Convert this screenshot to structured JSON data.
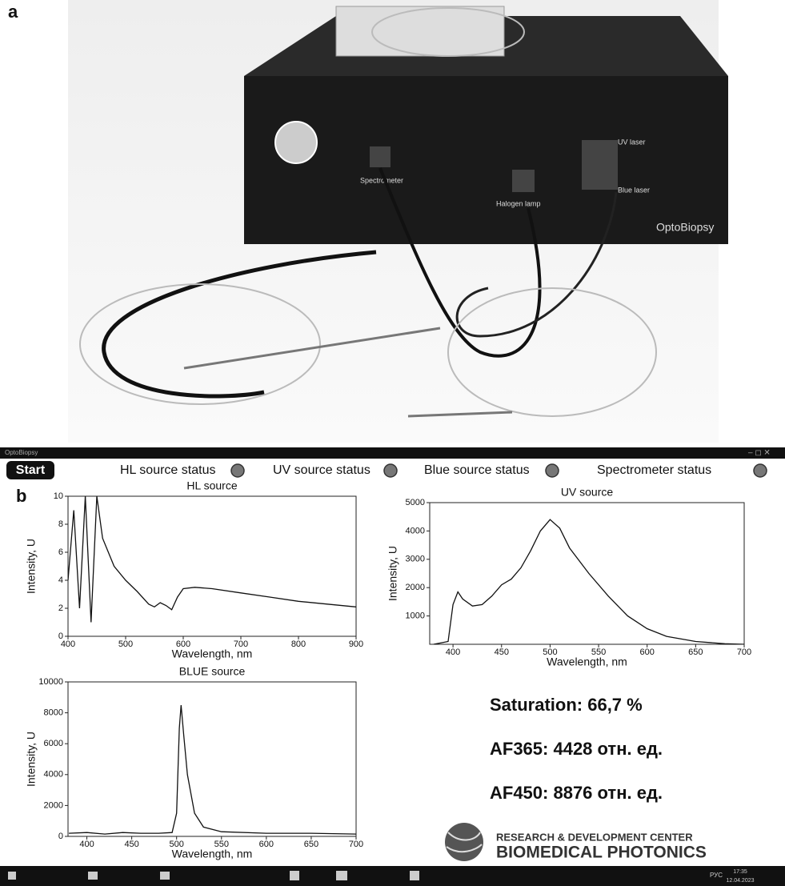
{
  "panel_labels": [
    "a",
    "b"
  ],
  "photo": {
    "labels": [
      "Spectrometer",
      "Halogen lamp",
      "UV laser",
      "Blue laser",
      "OptoBiopsy"
    ]
  },
  "window": {
    "title": "OptoBiopsy",
    "start_button": "Start",
    "statuses": [
      "HL source status",
      "UV source status",
      "Blue source status",
      "Spectrometer status"
    ]
  },
  "chart_data": [
    {
      "type": "line",
      "title": "HL source",
      "x_label": "Wavelength, nm",
      "y_label": "Intensity, U",
      "x": [
        400,
        410,
        420,
        430,
        440,
        450,
        460,
        470,
        480,
        500,
        520,
        540,
        550,
        560,
        570,
        580,
        590,
        600,
        620,
        650,
        700,
        750,
        800,
        850,
        900
      ],
      "series": [
        {
          "color": "#111111",
          "values": [
            4,
            9,
            2,
            10,
            1,
            10,
            7,
            6,
            5,
            4,
            3.2,
            2.3,
            2.1,
            2.4,
            2.2,
            1.9,
            2.8,
            3.4,
            3.5,
            3.4,
            3.1,
            2.8,
            2.5,
            2.3,
            2.1
          ]
        }
      ],
      "xlim": [
        400,
        900
      ],
      "ylim": [
        0,
        10
      ],
      "xticks": [
        400,
        500,
        600,
        700,
        800,
        900
      ],
      "yticks": [
        0,
        2,
        4,
        6,
        8,
        10
      ]
    },
    {
      "type": "line",
      "title": "UV source",
      "x_label": "Wavelength, nm",
      "y_label": "Intensity, U",
      "x": [
        380,
        395,
        400,
        405,
        410,
        420,
        430,
        440,
        450,
        460,
        470,
        480,
        490,
        500,
        510,
        520,
        540,
        560,
        580,
        600,
        620,
        650,
        680,
        700
      ],
      "series": [
        {
          "color": "#111111",
          "values": [
            0,
            100,
            1400,
            1850,
            1600,
            1350,
            1400,
            1700,
            2100,
            2300,
            2700,
            3300,
            4000,
            4400,
            4100,
            3400,
            2500,
            1700,
            1000,
            550,
            280,
            100,
            20,
            0
          ]
        }
      ],
      "xlim": [
        376,
        700
      ],
      "ylim": [
        0,
        5000
      ],
      "xticks": [
        400,
        450,
        500,
        550,
        600,
        650,
        700
      ],
      "yticks": [
        1000,
        2000,
        3000,
        4000,
        5000
      ]
    },
    {
      "type": "line",
      "title": "BLUE source",
      "x_label": "Wavelength, nm",
      "y_label": "Intensity, U",
      "x": [
        380,
        400,
        420,
        440,
        460,
        480,
        495,
        500,
        503,
        505,
        508,
        512,
        520,
        530,
        550,
        600,
        650,
        700
      ],
      "series": [
        {
          "color": "#111111",
          "values": [
            200,
            250,
            150,
            250,
            200,
            200,
            250,
            1500,
            7000,
            8500,
            6500,
            4000,
            1500,
            600,
            300,
            200,
            200,
            150
          ]
        }
      ],
      "xlim": [
        379,
        700
      ],
      "ylim": [
        0,
        10000
      ],
      "xticks": [
        400,
        450,
        500,
        550,
        600,
        650,
        700
      ],
      "yticks": [
        0,
        2000,
        4000,
        6000,
        8000,
        10000
      ]
    }
  ],
  "readouts": [
    "Saturation: 66,7 %",
    "AF365: 4428 отн. ед.",
    "AF450: 8876 отн. ед."
  ],
  "logo": {
    "line1": "RESEARCH & DEVELOPMENT CENTER",
    "line2": "BIOMEDICAL PHOTONICS"
  },
  "taskbar": {
    "language": "РУС",
    "time": "17:35",
    "date": "12.04.2023"
  }
}
